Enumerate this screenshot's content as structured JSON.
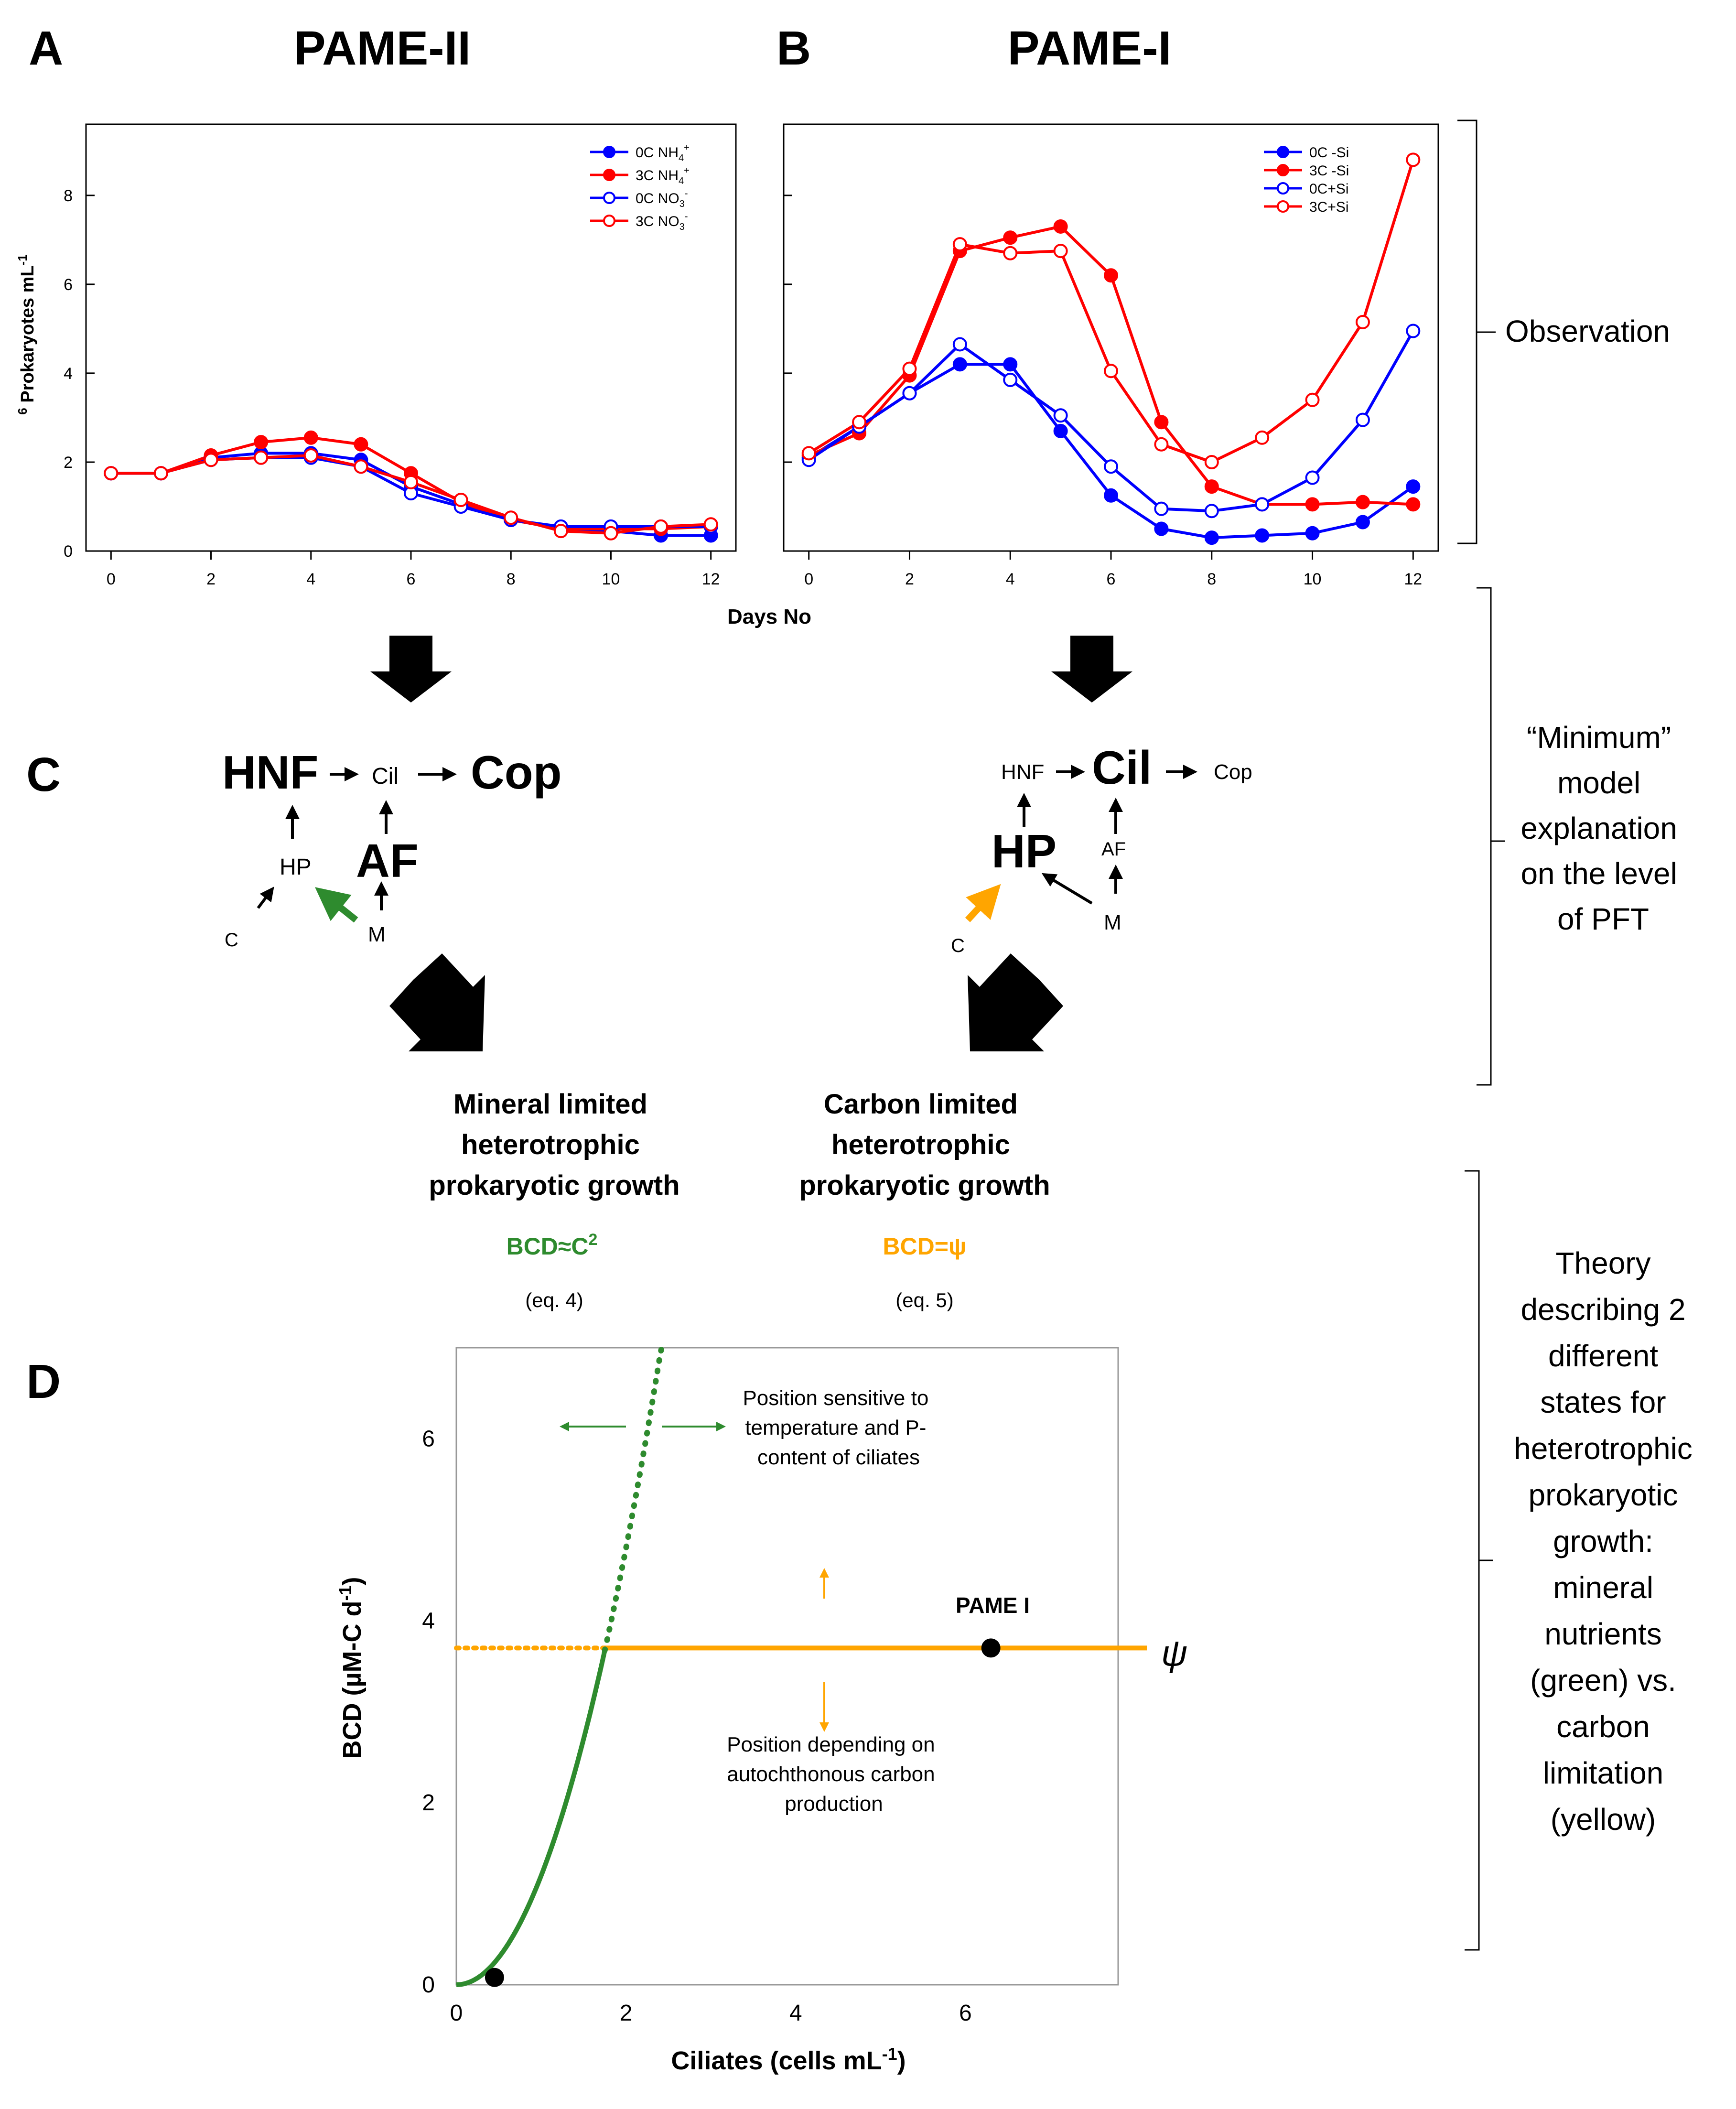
{
  "panels": {
    "A": {
      "letter": "A",
      "title": "PAME-II"
    },
    "B": {
      "letter": "B",
      "title": "PAME-I"
    },
    "C": {
      "letter": "C"
    },
    "D": {
      "letter": "D"
    }
  },
  "chart_data": [
    {
      "type": "line",
      "panel": "A",
      "title": "PAME-II",
      "xlabel": "Days No",
      "ylabel": "10^6 Prokaryotes mL^-1",
      "ylabel_parts": {
        "exp": "6",
        "main": " Prokaryotes mL",
        "sup": "-1"
      },
      "xlim": [
        -0.5,
        12.5
      ],
      "ylim": [
        0,
        9.6
      ],
      "x_ticks": [
        0,
        2,
        4,
        6,
        8,
        10,
        12
      ],
      "y_ticks": [
        0,
        2,
        4,
        6,
        8
      ],
      "legend_position": "top-right",
      "x": [
        0,
        1,
        2,
        3,
        4,
        5,
        6,
        7,
        8,
        9,
        10,
        11,
        12
      ],
      "series": [
        {
          "name": "0CNH4+",
          "label_main": "0C NH",
          "label_sub": "4",
          "label_sup": "+",
          "color": "#0000ff",
          "filled": true,
          "values": [
            1.75,
            1.75,
            2.1,
            2.2,
            2.2,
            2.05,
            1.45,
            1.05,
            0.7,
            0.5,
            0.45,
            0.35,
            0.35
          ]
        },
        {
          "name": "3CNH4+",
          "label_main": "3C NH",
          "label_sub": "4",
          "label_sup": "+",
          "color": "#ff0000",
          "filled": true,
          "values": [
            1.75,
            1.75,
            2.15,
            2.45,
            2.55,
            2.4,
            1.75,
            1.1,
            0.7,
            0.5,
            0.5,
            0.5,
            0.55
          ]
        },
        {
          "name": "0CNO3-",
          "label_main": "0C NO",
          "label_sub": "3",
          "label_sup": "-",
          "color": "#0000ff",
          "filled": false,
          "values": [
            1.75,
            1.75,
            2.05,
            2.1,
            2.1,
            1.9,
            1.3,
            1.0,
            0.7,
            0.55,
            0.55,
            0.55,
            0.55
          ]
        },
        {
          "name": "3CNO3-",
          "label_main": "3C NO",
          "label_sub": "3",
          "label_sup": "-",
          "color": "#ff0000",
          "filled": false,
          "values": [
            1.75,
            1.75,
            2.05,
            2.1,
            2.15,
            1.9,
            1.55,
            1.15,
            0.75,
            0.45,
            0.4,
            0.55,
            0.6
          ]
        }
      ]
    },
    {
      "type": "line",
      "panel": "B",
      "title": "PAME-I",
      "xlabel": "Days No",
      "xlim": [
        -0.5,
        12.5
      ],
      "ylim": [
        0,
        9.6
      ],
      "x_ticks": [
        0,
        2,
        4,
        6,
        8,
        10,
        12
      ],
      "y_ticks": [
        0,
        2,
        4,
        6,
        8
      ],
      "legend_position": "top-right",
      "x": [
        0,
        1,
        2,
        3,
        4,
        5,
        6,
        7,
        8,
        9,
        10,
        11,
        12
      ],
      "series": [
        {
          "name": "0C -Si",
          "color": "#0000ff",
          "filled": true,
          "values": [
            2.1,
            2.8,
            3.55,
            4.2,
            4.2,
            2.7,
            1.25,
            0.5,
            0.3,
            0.35,
            0.4,
            0.65,
            1.45
          ]
        },
        {
          "name": "3C -Si",
          "color": "#ff0000",
          "filled": true,
          "values": [
            2.15,
            2.65,
            3.95,
            6.75,
            7.05,
            7.3,
            6.2,
            2.9,
            1.45,
            1.05,
            1.05,
            1.1,
            1.05
          ]
        },
        {
          "name": "0C+Si",
          "color": "#0000ff",
          "filled": false,
          "values": [
            2.05,
            2.8,
            3.55,
            4.65,
            3.85,
            3.05,
            1.9,
            0.95,
            0.9,
            1.05,
            1.65,
            2.95,
            4.95
          ]
        },
        {
          "name": "3C+Si",
          "color": "#ff0000",
          "filled": false,
          "values": [
            2.2,
            2.9,
            4.1,
            6.9,
            6.7,
            6.75,
            4.05,
            2.4,
            2.0,
            2.55,
            3.4,
            5.15,
            8.8
          ]
        }
      ]
    },
    {
      "type": "line",
      "panel": "D",
      "xlabel": "Ciliates (cells mL-1)",
      "xlabel_parts": {
        "main": "Ciliates (cells mL",
        "sup": "-1",
        "end": ")"
      },
      "ylabel": "BCD (µM-C d-1)",
      "ylabel_parts": {
        "main": "BCD (µM-C d",
        "sup": "-1",
        "end": ")"
      },
      "xlim": [
        0,
        7.8
      ],
      "ylim": [
        0,
        7
      ],
      "x_ticks": [
        0,
        2,
        4,
        6
      ],
      "y_ticks": [
        0,
        2,
        4,
        6
      ],
      "psi_value": 3.7,
      "curve": {
        "form": "BCD = k * C^2",
        "k": 1.2,
        "color": "#2e8b2e",
        "solid_range": [
          0,
          1.75
        ],
        "dotted_range": [
          1.75,
          2.42
        ]
      },
      "plateau": {
        "color": "#ffa500",
        "solid_range": [
          1.75,
          7.8
        ],
        "dotted_range": [
          0,
          1.75
        ]
      },
      "points": [
        {
          "x": 0.45,
          "y": 0.08,
          "color": "#000000"
        },
        {
          "x": 6.3,
          "y": 3.7,
          "color": "#000000",
          "label": "PAME I"
        }
      ],
      "psi_label": "ψ",
      "annotations": {
        "green": [
          "Position sensitive to",
          "temperature and P-",
          "content of ciliates"
        ],
        "orange": [
          "Position depending on",
          "autochthonous carbon",
          "production"
        ]
      }
    }
  ],
  "model_C_left": {
    "nodes": {
      "HNF": "HNF",
      "Cil": "Cil",
      "Cop": "Cop",
      "HP": "HP",
      "AF": "AF",
      "C": "C",
      "M": "M"
    },
    "limit_arrow_color": "#2e8b2e"
  },
  "model_C_right": {
    "nodes": {
      "HNF": "HNF",
      "Cil": "Cil",
      "Cop": "Cop",
      "HP": "HP",
      "AF": "AF",
      "C": "C",
      "M": "M"
    },
    "limit_arrow_color": "#ffa500"
  },
  "results": {
    "mineral": {
      "lines": [
        "Mineral limited",
        "heterotrophic",
        "prokaryotic growth"
      ],
      "formula": "BCD≈C",
      "formula_sup": "2",
      "eq": "(eq. 4)",
      "color": "#2e8b2e"
    },
    "carbon": {
      "lines": [
        "Carbon limited",
        "heterotrophic",
        "prokaryotic growth"
      ],
      "formula": "BCD=ψ",
      "eq": "(eq. 5)",
      "color": "#ffa500"
    }
  },
  "side_labels": {
    "observation": "Observation",
    "model": [
      "“Minimum”",
      "model",
      "explanation",
      "on the level",
      "of PFT"
    ],
    "theory": [
      "Theory",
      "describing 2",
      "different",
      "states for",
      "heterotrophic",
      "prokaryotic",
      "growth:",
      "mineral",
      "nutrients",
      "(green) vs.",
      "carbon",
      "limitation",
      "(yellow)"
    ]
  }
}
